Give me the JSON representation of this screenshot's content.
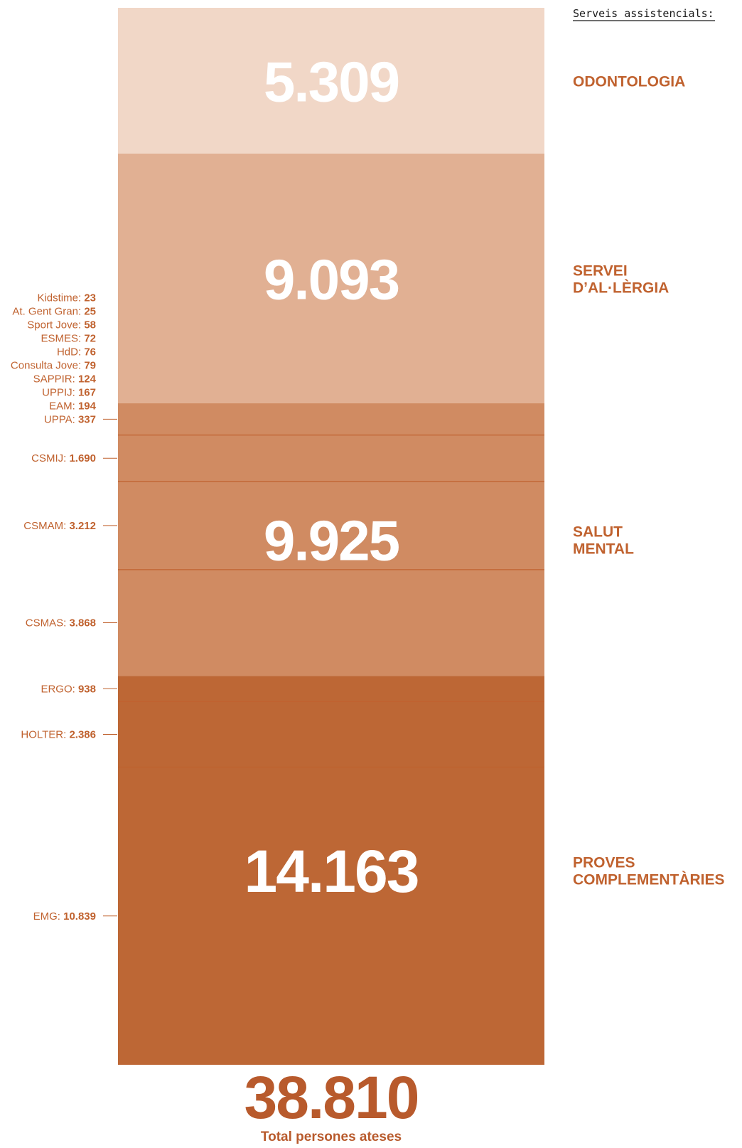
{
  "legend_heading": "Serveis assistencials:",
  "colors": {
    "accent": "#b85a2c",
    "label_text": "#c0622f",
    "divider": "#c0622f"
  },
  "chart_data": {
    "type": "bar",
    "orientation": "vertical-stacked",
    "total": 38810,
    "total_label": "38.810",
    "total_caption": "Total persones ateses",
    "categories": [
      {
        "name_lines": [
          "ODONTOLOGIA"
        ],
        "value": 5309,
        "value_label": "5.309",
        "color": "#f1d7c7",
        "sub": []
      },
      {
        "name_lines": [
          "SERVEI",
          "D’AL·LÈRGIA"
        ],
        "value": 9093,
        "value_label": "9.093",
        "color": "#e1b093",
        "sub": []
      },
      {
        "name_lines": [
          "SALUT",
          "MENTAL"
        ],
        "value": 9925,
        "value_label": "9.925",
        "color": "#d08b62",
        "sub": [
          {
            "name": "Kidstime",
            "value": 23,
            "value_label": "23",
            "grouped": true
          },
          {
            "name": "At. Gent Gran",
            "value": 25,
            "value_label": "25",
            "grouped": true
          },
          {
            "name": "Sport Jove",
            "value": 58,
            "value_label": "58",
            "grouped": true
          },
          {
            "name": "ESMES",
            "value": 72,
            "value_label": "72",
            "grouped": true
          },
          {
            "name": "HdD",
            "value": 76,
            "value_label": "76",
            "grouped": true
          },
          {
            "name": "Consulta Jove",
            "value": 79,
            "value_label": "79",
            "grouped": true
          },
          {
            "name": "SAPPIR",
            "value": 124,
            "value_label": "124",
            "grouped": true
          },
          {
            "name": "UPPIJ",
            "value": 167,
            "value_label": "167",
            "grouped": true
          },
          {
            "name": "EAM",
            "value": 194,
            "value_label": "194",
            "grouped": true
          },
          {
            "name": "UPPA",
            "value": 337,
            "value_label": "337",
            "grouped": true
          },
          {
            "name": "CSMIJ",
            "value": 1690,
            "value_label": "1.690",
            "grouped": false
          },
          {
            "name": "CSMAM",
            "value": 3212,
            "value_label": "3.212",
            "grouped": false
          },
          {
            "name": "CSMAS",
            "value": 3868,
            "value_label": "3.868",
            "grouped": false
          }
        ]
      },
      {
        "name_lines": [
          "PROVES",
          "COMPLEMENTÀRIES"
        ],
        "value": 14163,
        "value_label": "14.163",
        "color": "#bd6735",
        "sub": [
          {
            "name": "ERGO",
            "value": 938,
            "value_label": "938",
            "grouped": false
          },
          {
            "name": "HOLTER",
            "value": 2386,
            "value_label": "2.386",
            "grouped": false
          },
          {
            "name": "EMG",
            "value": 10839,
            "value_label": "10.839",
            "grouped": false
          }
        ]
      }
    ]
  }
}
